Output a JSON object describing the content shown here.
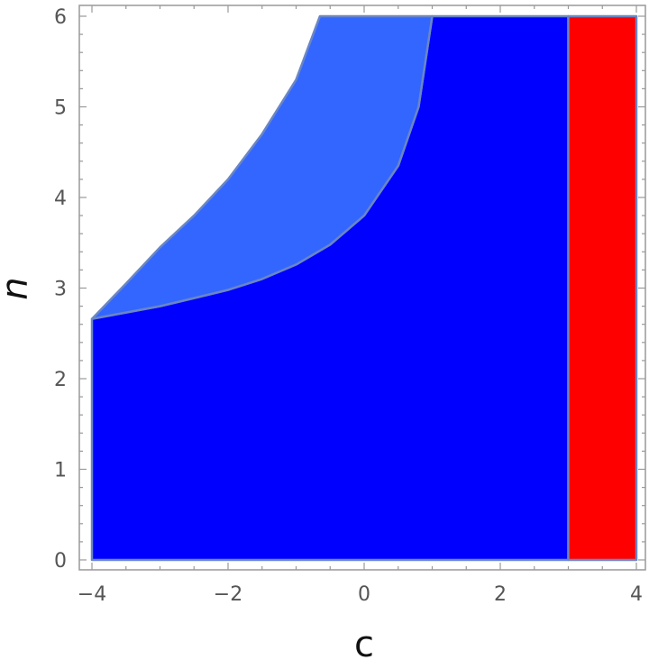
{
  "chart_data": {
    "type": "region-plot",
    "xlabel": "c",
    "ylabel": "n",
    "xlim": [
      -4,
      4
    ],
    "ylim": [
      0,
      6
    ],
    "x_ticks": [
      -4,
      -2,
      0,
      2,
      4
    ],
    "y_ticks": [
      0,
      1,
      2,
      3,
      4,
      5,
      6
    ],
    "x_tick_labels": [
      "−4",
      "−2",
      "0",
      "2",
      "4"
    ],
    "y_tick_labels": [
      "0",
      "1",
      "2",
      "3",
      "4",
      "5",
      "6"
    ],
    "frame": true,
    "grid": false,
    "regions": [
      {
        "color": "#0000ff",
        "boundary": [
          [
            -4,
            0
          ],
          [
            -4,
            2.66
          ],
          [
            -3.5,
            2.73
          ],
          [
            -3.0,
            2.8
          ],
          [
            -2.5,
            2.89
          ],
          [
            -2.0,
            2.98
          ],
          [
            -1.5,
            3.1
          ],
          [
            -1.0,
            3.26
          ],
          [
            -0.5,
            3.48
          ],
          [
            0.0,
            3.8
          ],
          [
            0.5,
            4.35
          ],
          [
            0.8,
            5.0
          ],
          [
            1.0,
            6.0
          ],
          [
            3.0,
            6.0
          ],
          [
            3.0,
            0
          ]
        ]
      },
      {
        "color": "#3366ff",
        "boundary": [
          [
            -4,
            2.66
          ],
          [
            -3.5,
            3.05
          ],
          [
            -3.0,
            3.45
          ],
          [
            -2.5,
            3.8
          ],
          [
            -2.0,
            4.2
          ],
          [
            -1.5,
            4.7
          ],
          [
            -1.0,
            5.3
          ],
          [
            -0.65,
            6.0
          ],
          [
            1.0,
            6.0
          ],
          [
            0.8,
            5.0
          ],
          [
            0.5,
            4.35
          ],
          [
            0.0,
            3.8
          ],
          [
            -0.5,
            3.48
          ],
          [
            -1.0,
            3.26
          ],
          [
            -1.5,
            3.1
          ],
          [
            -2.0,
            2.98
          ],
          [
            -2.5,
            2.89
          ],
          [
            -3.0,
            2.8
          ],
          [
            -3.5,
            2.73
          ]
        ]
      },
      {
        "color": "#ff0000",
        "boundary": [
          [
            3,
            0
          ],
          [
            3,
            6
          ],
          [
            4,
            6
          ],
          [
            4,
            0
          ]
        ]
      }
    ],
    "region_edge_color": "#6a86c4"
  }
}
